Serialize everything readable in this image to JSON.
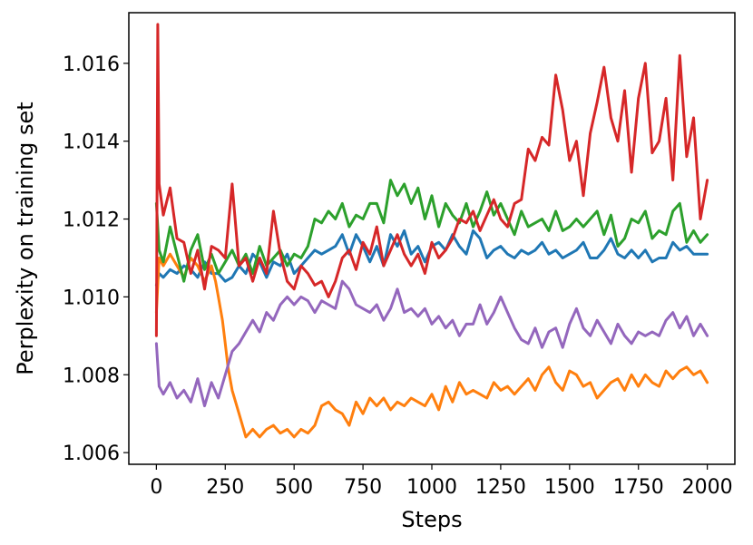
{
  "chart_data": {
    "type": "line",
    "title": "",
    "xlabel": "Steps",
    "ylabel": "Perplexity on training set",
    "xlim": [
      -100,
      2100
    ],
    "ylim": [
      1.0057,
      1.0173
    ],
    "xticks": [
      0,
      250,
      500,
      750,
      1000,
      1250,
      1500,
      1750,
      2000
    ],
    "xtick_labels": [
      "0",
      "250",
      "500",
      "750",
      "1000",
      "1250",
      "1500",
      "1750",
      "2000"
    ],
    "yticks": [
      1.006,
      1.008,
      1.01,
      1.012,
      1.014,
      1.016
    ],
    "ytick_labels": [
      "1.006",
      "1.008",
      "1.010",
      "1.012",
      "1.014",
      "1.016"
    ],
    "grid": false,
    "legend": "none",
    "series": [
      {
        "color": "#1f77b4",
        "x": [
          0,
          10,
          25,
          50,
          75,
          100,
          125,
          150,
          175,
          200,
          225,
          250,
          275,
          300,
          325,
          350,
          375,
          400,
          425,
          450,
          475,
          500,
          525,
          550,
          575,
          600,
          625,
          650,
          675,
          700,
          725,
          750,
          775,
          800,
          825,
          850,
          875,
          900,
          925,
          950,
          975,
          1000,
          1025,
          1050,
          1075,
          1100,
          1125,
          1150,
          1175,
          1200,
          1225,
          1250,
          1275,
          1300,
          1325,
          1350,
          1375,
          1400,
          1425,
          1450,
          1475,
          1500,
          1525,
          1550,
          1575,
          1600,
          1625,
          1650,
          1675,
          1700,
          1725,
          1750,
          1775,
          1800,
          1825,
          1850,
          1875,
          1900,
          1925,
          1950,
          1975,
          2000
        ],
        "y": [
          1.0103,
          1.0106,
          1.0105,
          1.0107,
          1.0106,
          1.0108,
          1.0107,
          1.0105,
          1.0109,
          1.0106,
          1.0106,
          1.0104,
          1.0105,
          1.0108,
          1.0106,
          1.0111,
          1.0109,
          1.0105,
          1.0109,
          1.0108,
          1.0111,
          1.0106,
          1.0108,
          1.011,
          1.0112,
          1.0111,
          1.0112,
          1.0113,
          1.0116,
          1.0111,
          1.0116,
          1.0113,
          1.0109,
          1.0113,
          1.0108,
          1.0116,
          1.0113,
          1.0117,
          1.0111,
          1.0113,
          1.0109,
          1.0113,
          1.0114,
          1.0112,
          1.0116,
          1.0113,
          1.0111,
          1.0117,
          1.0115,
          1.011,
          1.0112,
          1.0113,
          1.0111,
          1.011,
          1.0112,
          1.0111,
          1.0112,
          1.0114,
          1.0111,
          1.0112,
          1.011,
          1.0111,
          1.0112,
          1.0114,
          1.011,
          1.011,
          1.0112,
          1.0115,
          1.0111,
          1.011,
          1.0112,
          1.011,
          1.0112,
          1.0109,
          1.011,
          1.011,
          1.0114,
          1.0112,
          1.0113,
          1.0111,
          1.0111,
          1.0111
        ]
      },
      {
        "color": "#ff7f0e",
        "x": [
          0,
          10,
          25,
          50,
          75,
          100,
          125,
          150,
          175,
          200,
          215,
          225,
          240,
          250,
          260,
          275,
          300,
          325,
          350,
          375,
          400,
          425,
          450,
          475,
          500,
          525,
          550,
          575,
          600,
          625,
          650,
          675,
          700,
          725,
          750,
          775,
          800,
          825,
          850,
          875,
          900,
          925,
          950,
          975,
          1000,
          1025,
          1050,
          1075,
          1100,
          1125,
          1150,
          1175,
          1200,
          1225,
          1250,
          1275,
          1300,
          1325,
          1350,
          1375,
          1400,
          1425,
          1450,
          1475,
          1500,
          1525,
          1550,
          1575,
          1600,
          1625,
          1650,
          1675,
          1700,
          1725,
          1750,
          1775,
          1800,
          1825,
          1850,
          1875,
          1900,
          1925,
          1950,
          1975,
          2000
        ],
        "y": [
          1.0096,
          1.011,
          1.0108,
          1.0111,
          1.0108,
          1.0105,
          1.011,
          1.0108,
          1.0104,
          1.0108,
          1.0104,
          1.01,
          1.0094,
          1.0088,
          1.0082,
          1.0076,
          1.007,
          1.0064,
          1.0066,
          1.0064,
          1.0066,
          1.0067,
          1.0065,
          1.0066,
          1.0064,
          1.0066,
          1.0065,
          1.0067,
          1.0072,
          1.0073,
          1.0071,
          1.007,
          1.0067,
          1.0073,
          1.007,
          1.0074,
          1.0072,
          1.0074,
          1.0071,
          1.0073,
          1.0072,
          1.0074,
          1.0073,
          1.0072,
          1.0075,
          1.0071,
          1.0077,
          1.0073,
          1.0078,
          1.0075,
          1.0076,
          1.0075,
          1.0074,
          1.0078,
          1.0076,
          1.0077,
          1.0075,
          1.0077,
          1.0079,
          1.0076,
          1.008,
          1.0082,
          1.0078,
          1.0076,
          1.0081,
          1.008,
          1.0077,
          1.0078,
          1.0074,
          1.0076,
          1.0078,
          1.0079,
          1.0076,
          1.008,
          1.0077,
          1.008,
          1.0078,
          1.0077,
          1.0081,
          1.0079,
          1.0081,
          1.0082,
          1.008,
          1.0081,
          1.0078
        ]
      },
      {
        "color": "#2ca02c",
        "x": [
          0,
          10,
          25,
          50,
          75,
          100,
          125,
          150,
          175,
          200,
          225,
          250,
          275,
          300,
          325,
          350,
          375,
          400,
          425,
          450,
          475,
          500,
          525,
          550,
          575,
          600,
          625,
          650,
          675,
          700,
          725,
          750,
          775,
          800,
          825,
          850,
          875,
          900,
          925,
          950,
          975,
          1000,
          1025,
          1050,
          1075,
          1100,
          1125,
          1150,
          1175,
          1200,
          1225,
          1250,
          1275,
          1300,
          1325,
          1350,
          1375,
          1400,
          1425,
          1450,
          1475,
          1500,
          1525,
          1550,
          1575,
          1600,
          1625,
          1650,
          1675,
          1700,
          1725,
          1750,
          1775,
          1800,
          1825,
          1850,
          1875,
          1900,
          1925,
          1950,
          1975,
          2000
        ],
        "y": [
          1.0124,
          1.0112,
          1.0109,
          1.0118,
          1.0111,
          1.0104,
          1.0112,
          1.0116,
          1.0107,
          1.0111,
          1.0106,
          1.0109,
          1.0112,
          1.0108,
          1.0111,
          1.0106,
          1.0113,
          1.0108,
          1.011,
          1.0112,
          1.0108,
          1.0111,
          1.011,
          1.0113,
          1.012,
          1.0119,
          1.0122,
          1.012,
          1.0124,
          1.0118,
          1.0121,
          1.012,
          1.0124,
          1.0124,
          1.0119,
          1.013,
          1.0126,
          1.0129,
          1.0124,
          1.0128,
          1.012,
          1.0126,
          1.0118,
          1.0124,
          1.0121,
          1.0119,
          1.0124,
          1.0118,
          1.0122,
          1.0127,
          1.0121,
          1.0124,
          1.012,
          1.0116,
          1.0122,
          1.0118,
          1.0119,
          1.012,
          1.0117,
          1.0122,
          1.0117,
          1.0118,
          1.012,
          1.0118,
          1.012,
          1.0122,
          1.0116,
          1.0121,
          1.0113,
          1.0115,
          1.012,
          1.0119,
          1.0122,
          1.0115,
          1.0117,
          1.0116,
          1.0122,
          1.0124,
          1.0114,
          1.0117,
          1.0114,
          1.0116
        ]
      },
      {
        "color": "#d62728",
        "x": [
          0,
          5,
          10,
          25,
          50,
          75,
          100,
          125,
          150,
          175,
          200,
          225,
          250,
          275,
          300,
          325,
          350,
          375,
          400,
          425,
          450,
          475,
          500,
          525,
          550,
          575,
          600,
          625,
          650,
          675,
          700,
          725,
          750,
          775,
          800,
          825,
          850,
          875,
          900,
          925,
          950,
          975,
          1000,
          1025,
          1050,
          1075,
          1100,
          1125,
          1150,
          1175,
          1200,
          1225,
          1250,
          1275,
          1300,
          1325,
          1350,
          1375,
          1400,
          1425,
          1450,
          1475,
          1500,
          1525,
          1550,
          1575,
          1600,
          1625,
          1650,
          1675,
          1700,
          1725,
          1750,
          1775,
          1800,
          1825,
          1850,
          1875,
          1900,
          1925,
          1950,
          1975,
          2000
        ],
        "y": [
          1.009,
          1.017,
          1.0129,
          1.0121,
          1.0128,
          1.0115,
          1.0114,
          1.0106,
          1.0112,
          1.0102,
          1.0113,
          1.0112,
          1.011,
          1.0129,
          1.0108,
          1.011,
          1.0104,
          1.011,
          1.0106,
          1.0122,
          1.0111,
          1.0104,
          1.0102,
          1.0108,
          1.0106,
          1.0103,
          1.0104,
          1.01,
          1.0104,
          1.011,
          1.0112,
          1.0107,
          1.0114,
          1.0111,
          1.0118,
          1.0108,
          1.0112,
          1.0116,
          1.0111,
          1.0108,
          1.0111,
          1.0106,
          1.0114,
          1.011,
          1.0112,
          1.0115,
          1.012,
          1.0119,
          1.0122,
          1.0117,
          1.0121,
          1.0125,
          1.012,
          1.0118,
          1.0124,
          1.0125,
          1.0138,
          1.0135,
          1.0141,
          1.0139,
          1.0157,
          1.0148,
          1.0135,
          1.014,
          1.0126,
          1.0142,
          1.015,
          1.0159,
          1.0146,
          1.014,
          1.0153,
          1.0132,
          1.0151,
          1.016,
          1.0137,
          1.014,
          1.0151,
          1.013,
          1.0162,
          1.0136,
          1.0146,
          1.012,
          1.013
        ]
      },
      {
        "color": "#9467bd",
        "x": [
          0,
          10,
          25,
          50,
          75,
          100,
          125,
          150,
          175,
          200,
          225,
          250,
          275,
          300,
          325,
          350,
          375,
          400,
          425,
          450,
          475,
          500,
          525,
          550,
          575,
          600,
          625,
          650,
          675,
          700,
          725,
          750,
          775,
          800,
          825,
          850,
          875,
          900,
          925,
          950,
          975,
          1000,
          1025,
          1050,
          1075,
          1100,
          1125,
          1150,
          1175,
          1200,
          1225,
          1250,
          1275,
          1300,
          1325,
          1350,
          1375,
          1400,
          1425,
          1450,
          1475,
          1500,
          1525,
          1550,
          1575,
          1600,
          1625,
          1650,
          1675,
          1700,
          1725,
          1750,
          1775,
          1800,
          1825,
          1850,
          1875,
          1900,
          1925,
          1950,
          1975,
          2000
        ],
        "y": [
          1.0088,
          1.0077,
          1.0075,
          1.0078,
          1.0074,
          1.0076,
          1.0073,
          1.0079,
          1.0072,
          1.0078,
          1.0074,
          1.008,
          1.0086,
          1.0088,
          1.0091,
          1.0094,
          1.0091,
          1.0096,
          1.0094,
          1.0098,
          1.01,
          1.0098,
          1.01,
          1.0099,
          1.0096,
          1.0099,
          1.0098,
          1.0097,
          1.0104,
          1.0102,
          1.0098,
          1.0097,
          1.0096,
          1.0098,
          1.0094,
          1.0097,
          1.0102,
          1.0096,
          1.0097,
          1.0095,
          1.0097,
          1.0093,
          1.0095,
          1.0092,
          1.0094,
          1.009,
          1.0093,
          1.0093,
          1.0098,
          1.0093,
          1.0096,
          1.01,
          1.0096,
          1.0092,
          1.0089,
          1.0088,
          1.0092,
          1.0087,
          1.0091,
          1.0092,
          1.0087,
          1.0093,
          1.0097,
          1.0092,
          1.009,
          1.0094,
          1.0091,
          1.0088,
          1.0093,
          1.009,
          1.0088,
          1.0091,
          1.009,
          1.0091,
          1.009,
          1.0094,
          1.0096,
          1.0092,
          1.0095,
          1.009,
          1.0093,
          1.009
        ]
      }
    ]
  }
}
